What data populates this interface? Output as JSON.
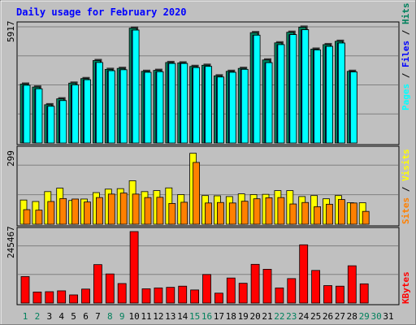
{
  "chart_data": {
    "type": "bar",
    "title": "Daily usage for February 2020",
    "x_labels": [
      "1",
      "2",
      "3",
      "4",
      "5",
      "6",
      "7",
      "8",
      "9",
      "10",
      "11",
      "12",
      "13",
      "14",
      "15",
      "16",
      "17",
      "18",
      "19",
      "20",
      "21",
      "22",
      "23",
      "24",
      "25",
      "26",
      "27",
      "28",
      "29",
      "30",
      "31"
    ],
    "weekend_days": [
      1,
      2,
      8,
      9,
      15,
      16,
      22,
      23,
      29,
      30
    ],
    "panels": [
      {
        "name": "pages-files-hits",
        "ymax_label": "5917",
        "ymax": 5917,
        "axis_labels": [
          "Pages",
          "Files",
          "Hits"
        ],
        "series": [
          {
            "name": "Hits",
            "color": "#00805c",
            "values": [
              3000,
              2850,
              1950,
              2250,
              3050,
              3280,
              4200,
              3750,
              3800,
              5850,
              3650,
              3700,
              4100,
              4080,
              3900,
              3960,
              3420,
              3650,
              3800,
              5620,
              4230,
              5100,
              5640,
              5900,
              4780,
              5010,
              5180,
              3650,
              0,
              0,
              0
            ]
          },
          {
            "name": "Files",
            "color": "#0000ff",
            "values": [
              2940,
              2760,
              1870,
              2160,
              2960,
              3220,
              4100,
              3680,
              3730,
              5750,
              3600,
              3630,
              4050,
              4050,
              3840,
              3900,
              3360,
              3600,
              3750,
              5490,
              4090,
              5010,
              5520,
              5770,
              4740,
              4920,
              5090,
              3620,
              0,
              0,
              0
            ]
          },
          {
            "name": "Pages",
            "color": "#00ffff",
            "values": [
              2940,
              2760,
              1870,
              2160,
              2960,
              3220,
              4100,
              3680,
              3730,
              5750,
              3600,
              3630,
              4050,
              4050,
              3840,
              3900,
              3360,
              3600,
              3750,
              5490,
              4090,
              5010,
              5520,
              5770,
              4740,
              4920,
              5090,
              3620,
              0,
              0,
              0
            ]
          }
        ]
      },
      {
        "name": "visits-sites",
        "ymax_label": "299",
        "ymax": 299,
        "axis_labels": [
          "Sites",
          "Visits"
        ],
        "series": [
          {
            "name": "Visits",
            "color": "#ffff00",
            "values": [
              98,
              92,
              132,
              146,
              96,
              102,
              128,
              142,
              144,
              176,
              132,
              136,
              147,
              120,
              287,
              116,
              115,
              112,
              123,
              120,
              121,
              136,
              136,
              112,
              116,
              103,
              116,
              87,
              87,
              0,
              0
            ]
          },
          {
            "name": "Sites",
            "color": "#ff8000",
            "values": [
              59,
              57,
              92,
              104,
              102,
              90,
              108,
              122,
              126,
              122,
              108,
              109,
              84,
              89,
              250,
              86,
              88,
              86,
              93,
              103,
              107,
              108,
              82,
              88,
              71,
              81,
              100,
              86,
              52,
              0,
              0
            ]
          }
        ]
      },
      {
        "name": "kbytes",
        "ymax_label": "245467",
        "ymax": 245467,
        "axis_labels": [
          "KBytes"
        ],
        "series": [
          {
            "name": "KBytes",
            "color": "#ff0000",
            "values": [
              91000,
              38000,
              39000,
              42000,
              28000,
              48000,
              132000,
              100000,
              67000,
              245467,
              49000,
              52000,
              54000,
              58000,
              45000,
              98000,
              34000,
              86000,
              68000,
              133000,
              116000,
              52000,
              84000,
              200000,
              112000,
              60000,
              58000,
              128000,
              66000,
              0,
              0
            ]
          }
        ]
      }
    ]
  }
}
